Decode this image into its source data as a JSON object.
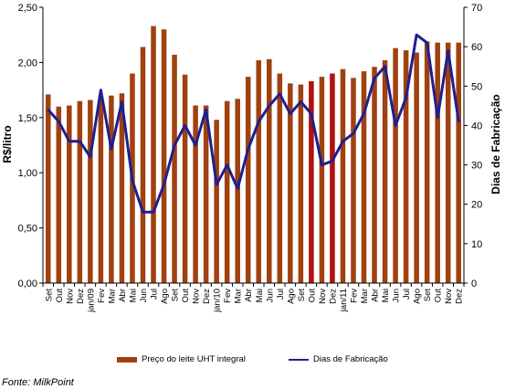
{
  "chart_data": {
    "type": "bar",
    "categories": [
      "Set",
      "Out",
      "Nov",
      "Dez",
      "jan/09",
      "Fev",
      "Mar",
      "Abr",
      "Mai",
      "Jun",
      "Jul",
      "Ago",
      "Set",
      "Out",
      "Nov",
      "Dez",
      "jan/10",
      "Fev",
      "Mar",
      "Abr",
      "Mai",
      "Jun",
      "Jul",
      "Ago",
      "Set",
      "Out",
      "Nov",
      "Dez",
      "jan/11",
      "Fev",
      "Mar",
      "Abr",
      "Mai",
      "Jun",
      "Jul",
      "Ago",
      "Set",
      "Out",
      "Nov",
      "Dez"
    ],
    "series": [
      {
        "name": "Preço do leite UHT integral",
        "type": "bar",
        "axis": "left",
        "color": "#a0410f",
        "highlight_color": "#b01010",
        "highlight_indices": [
          25,
          27
        ],
        "values": [
          1.71,
          1.6,
          1.61,
          1.65,
          1.66,
          1.7,
          1.7,
          1.72,
          1.9,
          2.14,
          2.33,
          2.3,
          2.07,
          1.89,
          1.61,
          1.61,
          1.48,
          1.65,
          1.67,
          1.87,
          2.02,
          2.03,
          1.9,
          1.81,
          1.8,
          1.83,
          1.87,
          1.9,
          1.94,
          1.86,
          1.92,
          1.96,
          2.02,
          2.13,
          2.11,
          2.09,
          2.19,
          2.18,
          2.18,
          2.18
        ]
      },
      {
        "name": "Dias de Fabricação",
        "type": "line",
        "axis": "right",
        "color": "#1f1f8f",
        "values": [
          44,
          41,
          36,
          36,
          32,
          49,
          34,
          46,
          26,
          18,
          18,
          25,
          35,
          40,
          35,
          44,
          25,
          30,
          24,
          34,
          41,
          45,
          48,
          43,
          46,
          43,
          30,
          31,
          36,
          38,
          43,
          52,
          55,
          40,
          47,
          63,
          61,
          42,
          59,
          41
        ]
      }
    ],
    "ylabel": "R$/litro",
    "ylabel_right": "Dias de Fabricação",
    "ylim": [
      0,
      2.5
    ],
    "ylim_right": [
      0,
      70
    ],
    "yticks": [
      "0,00",
      "0,50",
      "1,00",
      "1,50",
      "2,00",
      "2,50"
    ],
    "yticks_right": [
      "0",
      "10",
      "20",
      "30",
      "40",
      "50",
      "60",
      "70"
    ],
    "grid": false,
    "legend_position": "bottom"
  },
  "legend": {
    "bar_label": "Preço do leite UHT integral",
    "line_label": "Dias de Fabricação"
  },
  "source": "Fonte: MilkPoint"
}
